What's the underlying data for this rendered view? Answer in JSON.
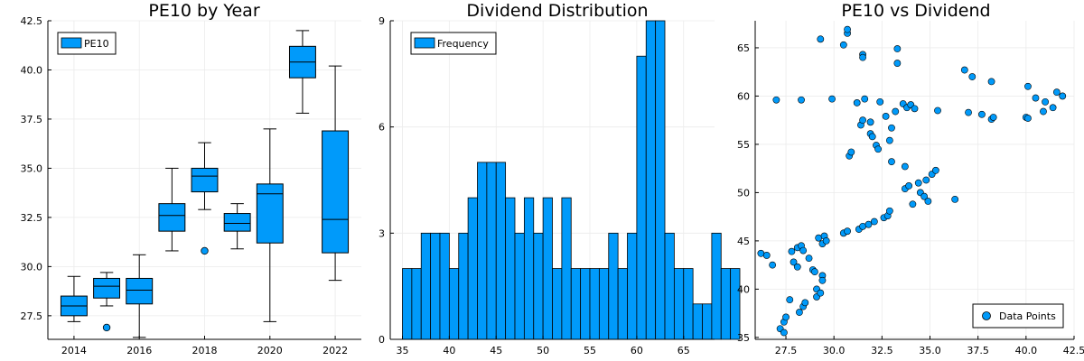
{
  "colors": {
    "series": "#009AFA",
    "axis": "#000000",
    "grid": "#EBEBEB",
    "background": "#FFFFFF"
  },
  "chart_data": [
    {
      "type": "box",
      "title": "PE10 by Year",
      "legend": {
        "label": "PE10",
        "placement": "top-left"
      },
      "grid": true,
      "xlim": [
        2013.2,
        2022.8
      ],
      "ylim": [
        26.3,
        42.5
      ],
      "x_ticks": [
        "2014",
        "2016",
        "2018",
        "2020",
        "2022"
      ],
      "y_ticks": [
        "27.5",
        "30.0",
        "32.5",
        "35.0",
        "37.5",
        "40.0",
        "42.5"
      ],
      "boxes": [
        {
          "x": 2014,
          "min": 27.2,
          "q1": 27.5,
          "median": 28.0,
          "q3": 28.5,
          "max": 29.5,
          "outliers": []
        },
        {
          "x": 2015,
          "min": 28.0,
          "q1": 28.4,
          "median": 29.0,
          "q3": 29.4,
          "max": 29.7,
          "outliers": [
            26.9
          ]
        },
        {
          "x": 2016,
          "min": 26.4,
          "q1": 28.1,
          "median": 28.8,
          "q3": 29.4,
          "max": 30.6,
          "outliers": []
        },
        {
          "x": 2017,
          "min": 30.8,
          "q1": 31.8,
          "median": 32.6,
          "q3": 33.2,
          "max": 35.0,
          "outliers": []
        },
        {
          "x": 2018,
          "min": 32.9,
          "q1": 33.8,
          "median": 34.6,
          "q3": 35.0,
          "max": 36.3,
          "outliers": [
            30.8
          ]
        },
        {
          "x": 2019,
          "min": 30.9,
          "q1": 31.8,
          "median": 32.2,
          "q3": 32.7,
          "max": 33.2,
          "outliers": []
        },
        {
          "x": 2020,
          "min": 27.2,
          "q1": 31.2,
          "median": 33.7,
          "q3": 34.2,
          "max": 37.0,
          "outliers": []
        },
        {
          "x": 2021,
          "min": 37.8,
          "q1": 39.6,
          "median": 40.4,
          "q3": 41.2,
          "max": 42.0,
          "outliers": []
        },
        {
          "x": 2022,
          "min": 29.3,
          "q1": 30.7,
          "median": 32.4,
          "q3": 36.9,
          "max": 40.2,
          "outliers": []
        }
      ]
    },
    {
      "type": "bar",
      "title": "Dividend Distribution",
      "legend": {
        "label": "Frequency",
        "placement": "top-left"
      },
      "grid": true,
      "xlim": [
        33.7,
        68.3
      ],
      "ylim": [
        0,
        9
      ],
      "x_ticks": [
        "35",
        "40",
        "45",
        "50",
        "55",
        "60",
        "65"
      ],
      "y_ticks": [
        "0",
        "3",
        "6",
        "9"
      ],
      "bin_start": 35,
      "bin_width": 1,
      "values": [
        2,
        2,
        3,
        3,
        3,
        2,
        3,
        4,
        5,
        5,
        5,
        4,
        3,
        4,
        3,
        4,
        2,
        4,
        2,
        2,
        2,
        2,
        3,
        2,
        3,
        8,
        9,
        9,
        3,
        2,
        2,
        1,
        1,
        3,
        2,
        2
      ]
    },
    {
      "type": "scatter",
      "title": "PE10 vs Dividend",
      "legend": {
        "label": "Data Points",
        "placement": "bottom-right"
      },
      "grid": true,
      "xlim": [
        25.9,
        42.5
      ],
      "ylim": [
        34.8,
        67.8
      ],
      "x_ticks": [
        "27.5",
        "30.0",
        "32.5",
        "35.0",
        "37.5",
        "40.0",
        "42.5"
      ],
      "y_ticks": [
        "35",
        "40",
        "45",
        "50",
        "55",
        "60",
        "65"
      ],
      "points": [
        [
          26.2,
          43.7
        ],
        [
          26.5,
          43.5
        ],
        [
          26.8,
          42.5
        ],
        [
          27.0,
          59.6
        ],
        [
          27.2,
          35.9
        ],
        [
          27.4,
          36.6
        ],
        [
          27.5,
          37.1
        ],
        [
          27.4,
          35.5
        ],
        [
          27.7,
          38.9
        ],
        [
          27.8,
          43.9
        ],
        [
          27.9,
          42.8
        ],
        [
          28.1,
          42.3
        ],
        [
          28.1,
          44.3
        ],
        [
          28.3,
          44.5
        ],
        [
          28.3,
          59.6
        ],
        [
          28.4,
          44.0
        ],
        [
          28.2,
          37.6
        ],
        [
          28.4,
          38.2
        ],
        [
          28.5,
          38.6
        ],
        [
          28.7,
          43.2
        ],
        [
          28.9,
          42.0
        ],
        [
          29.0,
          41.8
        ],
        [
          29.1,
          40.0
        ],
        [
          29.2,
          45.3
        ],
        [
          29.1,
          39.2
        ],
        [
          29.3,
          39.6
        ],
        [
          29.4,
          41.4
        ],
        [
          29.4,
          40.9
        ],
        [
          29.4,
          44.7
        ],
        [
          29.5,
          45.5
        ],
        [
          29.6,
          45.0
        ],
        [
          29.3,
          65.9
        ],
        [
          29.9,
          59.7
        ],
        [
          30.5,
          45.8
        ],
        [
          30.7,
          46.0
        ],
        [
          30.5,
          65.3
        ],
        [
          30.7,
          66.5
        ],
        [
          30.7,
          66.9
        ],
        [
          30.8,
          53.8
        ],
        [
          30.9,
          54.2
        ],
        [
          31.2,
          59.3
        ],
        [
          31.3,
          46.2
        ],
        [
          31.5,
          46.5
        ],
        [
          31.4,
          57.0
        ],
        [
          31.5,
          64.3
        ],
        [
          31.5,
          64.0
        ],
        [
          31.6,
          59.7
        ],
        [
          31.5,
          57.5
        ],
        [
          31.8,
          46.7
        ],
        [
          31.9,
          56.1
        ],
        [
          31.9,
          57.3
        ],
        [
          32.0,
          55.8
        ],
        [
          32.1,
          47.0
        ],
        [
          32.2,
          54.9
        ],
        [
          32.3,
          54.5
        ],
        [
          32.6,
          47.4
        ],
        [
          32.4,
          59.4
        ],
        [
          32.7,
          57.9
        ],
        [
          32.8,
          47.6
        ],
        [
          32.9,
          48.1
        ],
        [
          32.9,
          55.4
        ],
        [
          33.0,
          53.2
        ],
        [
          33.0,
          56.7
        ],
        [
          33.2,
          58.4
        ],
        [
          33.3,
          63.4
        ],
        [
          33.3,
          64.9
        ],
        [
          33.6,
          59.2
        ],
        [
          33.7,
          50.4
        ],
        [
          33.7,
          52.7
        ],
        [
          33.8,
          58.8
        ],
        [
          34.0,
          59.1
        ],
        [
          33.9,
          50.7
        ],
        [
          34.1,
          48.8
        ],
        [
          34.2,
          58.7
        ],
        [
          34.4,
          51.0
        ],
        [
          34.5,
          50.0
        ],
        [
          34.7,
          49.6
        ],
        [
          34.8,
          51.3
        ],
        [
          34.9,
          49.1
        ],
        [
          35.1,
          51.9
        ],
        [
          35.3,
          52.3
        ],
        [
          35.4,
          58.5
        ],
        [
          36.3,
          49.3
        ],
        [
          36.8,
          62.7
        ],
        [
          37.0,
          58.3
        ],
        [
          37.2,
          62.0
        ],
        [
          37.7,
          58.1
        ],
        [
          38.2,
          57.6
        ],
        [
          38.3,
          57.8
        ],
        [
          38.2,
          61.5
        ],
        [
          40.0,
          57.8
        ],
        [
          40.1,
          57.7
        ],
        [
          40.1,
          61.0
        ],
        [
          40.5,
          59.8
        ],
        [
          40.9,
          58.4
        ],
        [
          41.0,
          59.4
        ],
        [
          41.4,
          58.8
        ],
        [
          41.6,
          60.4
        ],
        [
          41.9,
          60.0
        ]
      ]
    }
  ]
}
